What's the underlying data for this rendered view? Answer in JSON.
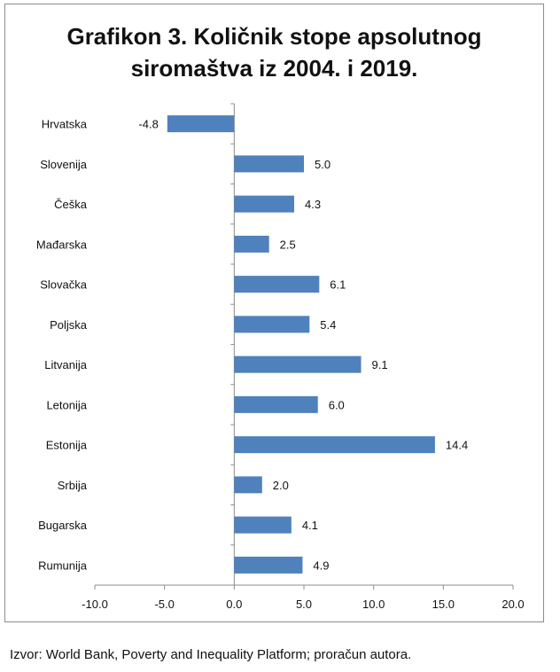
{
  "chart_data": {
    "type": "bar",
    "orientation": "horizontal",
    "title_line1": "Grafikon 3. Količnik stope apsolutnog",
    "title_line2": "siromaštva iz 2004. i 2019.",
    "categories": [
      "Hrvatska",
      "Slovenija",
      "Češka",
      "Mađarska",
      "Slovačka",
      "Poljska",
      "Litvanija",
      "Letonija",
      "Estonija",
      "Srbija",
      "Bugarska",
      "Rumunija"
    ],
    "values": [
      -4.8,
      5.0,
      4.3,
      2.5,
      6.1,
      5.4,
      9.1,
      6.0,
      14.4,
      2.0,
      4.1,
      4.9
    ],
    "value_labels": [
      "-4.8",
      "5.0",
      "4.3",
      "2.5",
      "6.1",
      "5.4",
      "9.1",
      "6.0",
      "14.4",
      "2.0",
      "4.1",
      "4.9"
    ],
    "xlim": [
      -10,
      20
    ],
    "xticks": [
      -10,
      -5,
      0,
      5,
      10,
      15,
      20
    ],
    "xtick_labels": [
      "-10.0",
      "-5.0",
      "0.0",
      "5.0",
      "10.0",
      "15.0",
      "20.0"
    ],
    "grid": false,
    "bar_color": "#4f81bd"
  },
  "source_note": "Izvor: World Bank, Poverty and Inequality Platform; proračun autora."
}
